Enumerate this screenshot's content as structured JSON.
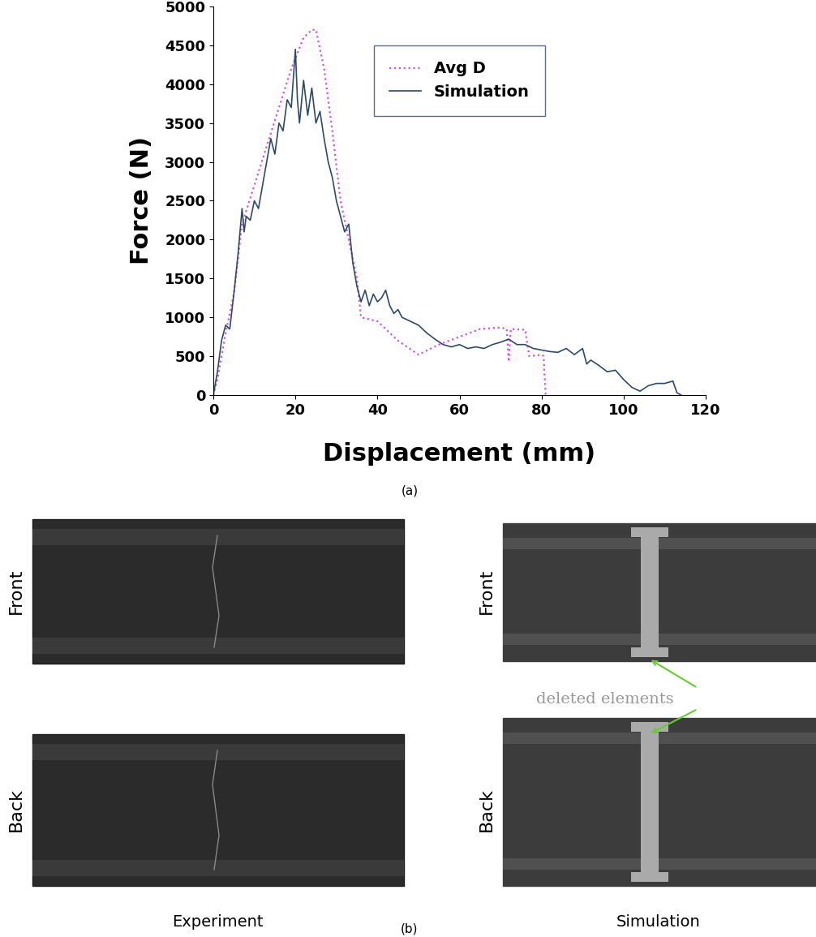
{
  "chart_data": {
    "type": "line",
    "x_label": "Displacement (mm)",
    "y_label": "Force (N)",
    "caption": "(a)",
    "xlim": [
      0,
      120
    ],
    "xticks": [
      0,
      20,
      40,
      60,
      80,
      100,
      120
    ],
    "ylim": [
      0,
      5000
    ],
    "yticks": [
      0,
      500,
      1000,
      1500,
      2000,
      2500,
      3000,
      3500,
      4000,
      4500,
      5000
    ],
    "grid": false,
    "legend": "upper center",
    "series": [
      {
        "name": "Avg D",
        "color": "#cc55dd",
        "line_style": "dotted",
        "x": [
          0,
          1,
          3,
          5,
          7,
          10,
          13,
          16,
          19,
          22,
          24,
          25,
          27,
          29,
          31,
          33,
          35,
          36,
          40,
          45,
          50,
          55,
          60,
          65,
          70,
          71.5,
          72,
          72.5,
          76,
          77,
          80,
          80.5,
          81
        ],
        "values": [
          0,
          200,
          800,
          1300,
          2200,
          2700,
          3200,
          3700,
          4200,
          4600,
          4700,
          4700,
          4200,
          3400,
          2500,
          2000,
          1500,
          1000,
          950,
          700,
          520,
          650,
          750,
          850,
          870,
          850,
          430,
          850,
          840,
          500,
          520,
          500,
          0
        ]
      },
      {
        "name": "Simulation",
        "color": "#2e4a6b",
        "line_style": "solid",
        "x": [
          0,
          1,
          2,
          3,
          4,
          5,
          6,
          7,
          7.5,
          8,
          9,
          10,
          11,
          12,
          13,
          14,
          15,
          16,
          17,
          18,
          19,
          20,
          20.5,
          21,
          22,
          23,
          24,
          25,
          26,
          27,
          28,
          29,
          30,
          31,
          32,
          33,
          34,
          35,
          36,
          37,
          38,
          39,
          40,
          41,
          42,
          43,
          44,
          45,
          46,
          48,
          50,
          52,
          54,
          56,
          58,
          60,
          62,
          64,
          66,
          68,
          70,
          72,
          74,
          76,
          78,
          80,
          82,
          84,
          86,
          88,
          90,
          91,
          92,
          94,
          96,
          98,
          100,
          102,
          104,
          106,
          108,
          110,
          112,
          113,
          114
        ],
        "values": [
          0,
          300,
          700,
          900,
          850,
          1300,
          1800,
          2400,
          2100,
          2300,
          2250,
          2500,
          2400,
          2700,
          3000,
          3300,
          3100,
          3500,
          3400,
          3800,
          3700,
          4450,
          3800,
          3500,
          4050,
          3600,
          3950,
          3500,
          3650,
          3300,
          3000,
          2800,
          2500,
          2300,
          2100,
          2200,
          1700,
          1400,
          1200,
          1350,
          1150,
          1300,
          1200,
          1250,
          1350,
          1150,
          1050,
          1100,
          1000,
          950,
          900,
          800,
          720,
          650,
          620,
          650,
          600,
          620,
          600,
          650,
          680,
          720,
          650,
          650,
          600,
          580,
          560,
          550,
          600,
          520,
          600,
          400,
          450,
          380,
          300,
          320,
          200,
          100,
          50,
          120,
          150,
          150,
          180,
          30,
          0
        ]
      }
    ]
  },
  "photo_panel": {
    "caption": "(b)",
    "rows": [
      "Front",
      "Back"
    ],
    "columns": [
      "Experiment",
      "Simulation"
    ],
    "annotation": "deleted elements"
  }
}
